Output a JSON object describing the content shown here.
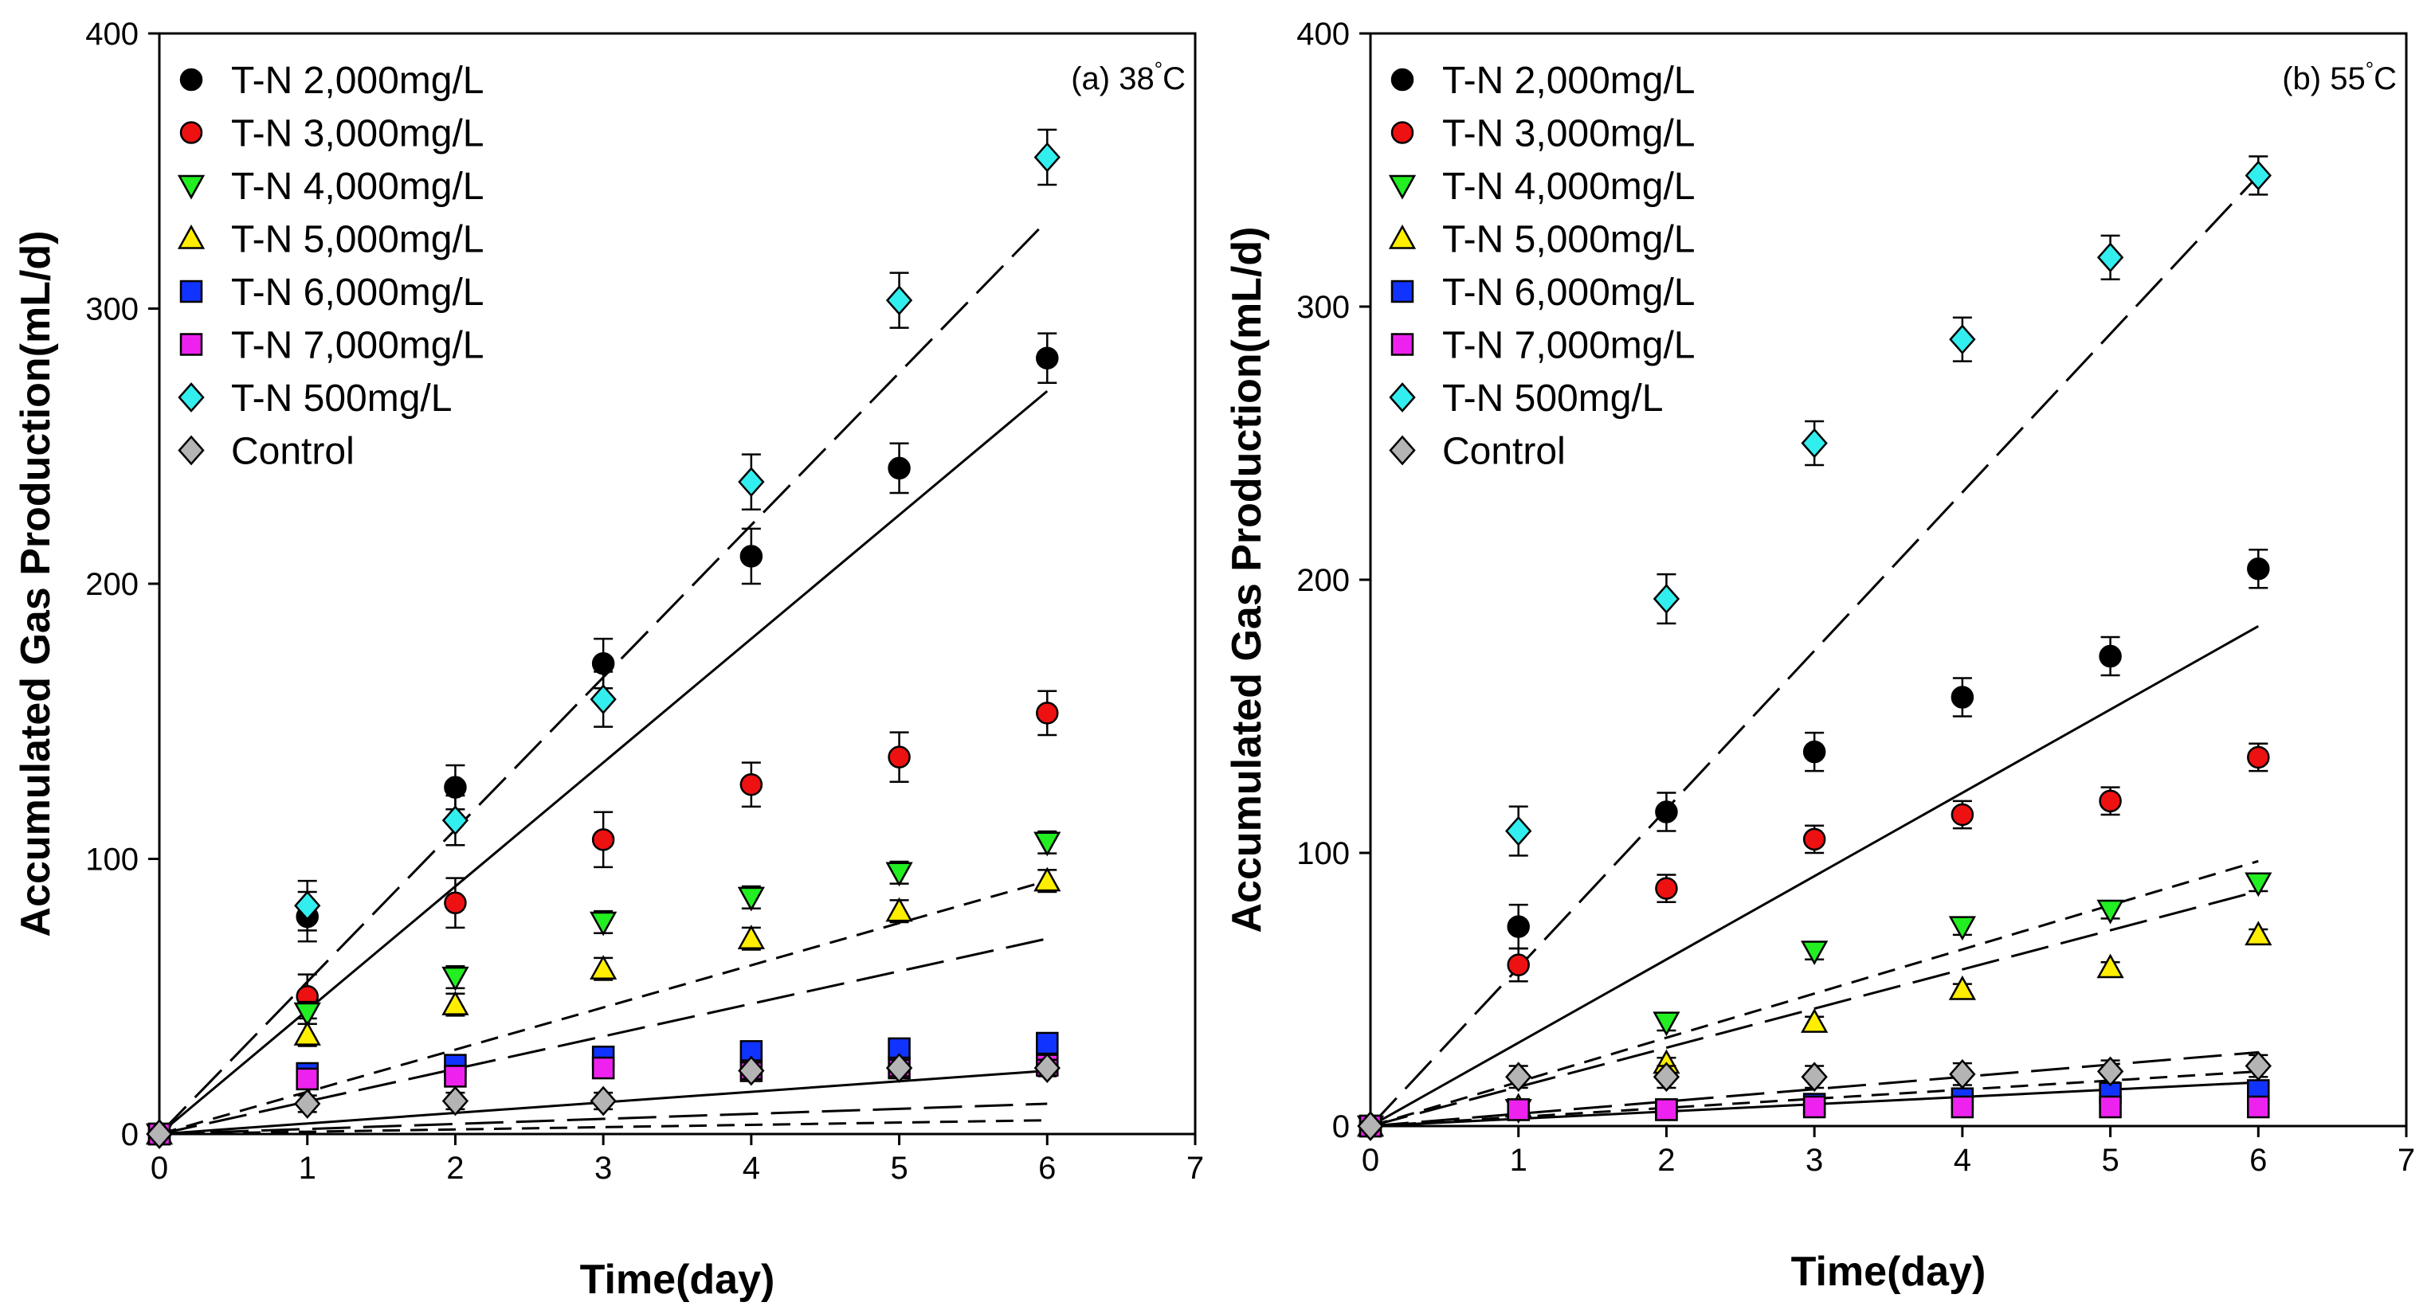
{
  "chart_data": [
    {
      "type": "scatter",
      "panel": "(a)",
      "temperature_label": "38",
      "temperature_unit": "°C",
      "xlabel": "Time(day)",
      "ylabel": "Accumulated Gas Production(mL/d)",
      "xlim": [
        0,
        7
      ],
      "ylim": [
        0,
        400
      ],
      "xticks": [
        "0",
        "1",
        "2",
        "3",
        "4",
        "5",
        "6",
        "7"
      ],
      "yticks": [
        "0",
        "100",
        "200",
        "300",
        "400"
      ],
      "x": [
        0,
        1,
        2,
        3,
        4,
        5,
        6
      ],
      "legend_position": "top-left",
      "series": [
        {
          "name": "T-N 2,000mg/L",
          "marker": "circle",
          "color": "#000000",
          "values": [
            0,
            79,
            126,
            171,
            210,
            242,
            282
          ],
          "errors": [
            0,
            9,
            8,
            9,
            10,
            9,
            9
          ],
          "fit_end": 270,
          "fit_style": "solid"
        },
        {
          "name": "T-N 3,000mg/L",
          "marker": "circle",
          "color": "#ee1111",
          "values": [
            0,
            50,
            84,
            107,
            127,
            137,
            153
          ],
          "errors": [
            0,
            8,
            9,
            10,
            8,
            9,
            8
          ],
          "fit_end": 92,
          "fit_style": "short-dash"
        },
        {
          "name": "T-N 4,000mg/L",
          "marker": "triangle-down",
          "color": "#22ee22",
          "values": [
            0,
            44,
            57,
            77,
            86,
            95,
            106
          ],
          "errors": [
            0,
            4,
            4,
            4,
            4,
            4,
            4
          ],
          "fit_end": 71,
          "fit_style": "long-dash"
        },
        {
          "name": "T-N 5,000mg/L",
          "marker": "triangle-up",
          "color": "#ffee00",
          "values": [
            0,
            36,
            47,
            60,
            71,
            81,
            92
          ],
          "errors": [
            0,
            4,
            4,
            4,
            4,
            4,
            4
          ],
          "fit_end": 0,
          "fit_style": "none"
        },
        {
          "name": "T-N 6,000mg/L",
          "marker": "square",
          "color": "#1133ff",
          "values": [
            0,
            22,
            25,
            28,
            30,
            31,
            33
          ],
          "errors": [
            0,
            3,
            3,
            3,
            3,
            3,
            3
          ],
          "fit_end": 11,
          "fit_style": "long-dash"
        },
        {
          "name": "T-N 7,000mg/L",
          "marker": "square",
          "color": "#ee22ee",
          "values": [
            0,
            20,
            21,
            24,
            23,
            24,
            25
          ],
          "errors": [
            0,
            3,
            3,
            3,
            3,
            3,
            3
          ],
          "fit_end": 5,
          "fit_style": "short-dash"
        },
        {
          "name": "T-N 500mg/L",
          "marker": "diamond",
          "color": "#33eeee",
          "values": [
            0,
            83,
            114,
            158,
            237,
            303,
            355
          ],
          "errors": [
            0,
            9,
            9,
            10,
            10,
            10,
            10
          ],
          "fit_end": 332,
          "fit_style": "long-dash"
        },
        {
          "name": "Control",
          "marker": "diamond",
          "color": "#b4b4b4",
          "values": [
            0,
            11,
            12,
            12,
            23,
            24,
            24
          ],
          "errors": [
            0,
            3,
            3,
            3,
            3,
            3,
            3
          ],
          "fit_end": 23,
          "fit_style": "solid"
        }
      ]
    },
    {
      "type": "scatter",
      "panel": "(b)",
      "temperature_label": "55",
      "temperature_unit": "°C",
      "xlabel": "Time(day)",
      "ylabel": "Accumulated Gas Production(mL/d)",
      "xlim": [
        0,
        7
      ],
      "ylim": [
        0,
        400
      ],
      "xticks": [
        "0",
        "1",
        "2",
        "3",
        "4",
        "5",
        "6",
        "7"
      ],
      "yticks": [
        "0",
        "100",
        "200",
        "300",
        "400"
      ],
      "x": [
        0,
        1,
        2,
        3,
        4,
        5,
        6
      ],
      "legend_position": "top-left",
      "series": [
        {
          "name": "T-N 2,000mg/L",
          "marker": "circle",
          "color": "#000000",
          "values": [
            0,
            73,
            115,
            137,
            157,
            172,
            204
          ],
          "errors": [
            0,
            8,
            7,
            7,
            7,
            7,
            7
          ],
          "fit_end": 183,
          "fit_style": "solid"
        },
        {
          "name": "T-N 3,000mg/L",
          "marker": "circle",
          "color": "#ee1111",
          "values": [
            0,
            59,
            87,
            105,
            114,
            119,
            135
          ],
          "errors": [
            0,
            6,
            5,
            5,
            5,
            5,
            5
          ],
          "fit_end": 97,
          "fit_style": "short-dash"
        },
        {
          "name": "T-N 4,000mg/L",
          "marker": "triangle-down",
          "color": "#22ee22",
          "values": [
            0,
            6,
            38,
            64,
            73,
            79,
            89
          ],
          "errors": [
            0,
            2,
            3,
            3,
            3,
            3,
            3
          ],
          "fit_end": 86,
          "fit_style": "long-dash"
        },
        {
          "name": "T-N 5,000mg/L",
          "marker": "triangle-up",
          "color": "#ffee00",
          "values": [
            0,
            7,
            23,
            38,
            50,
            58,
            70
          ],
          "errors": [
            0,
            2,
            2,
            2,
            2,
            2,
            2
          ],
          "fit_end": 0,
          "fit_style": "none"
        },
        {
          "name": "T-N 6,000mg/L",
          "marker": "square",
          "color": "#1133ff",
          "values": [
            0,
            6,
            6,
            8,
            10,
            12,
            13
          ],
          "errors": [
            0,
            1,
            1,
            1,
            1,
            1,
            1
          ],
          "fit_end": 16,
          "fit_style": "solid"
        },
        {
          "name": "T-N 7,000mg/L",
          "marker": "square",
          "color": "#ee22ee",
          "values": [
            0,
            6,
            6,
            7,
            7,
            7,
            7
          ],
          "errors": [
            0,
            1,
            1,
            1,
            1,
            1,
            1
          ],
          "fit_end": 20,
          "fit_style": "short-dash"
        },
        {
          "name": "T-N 500mg/L",
          "marker": "diamond",
          "color": "#33eeee",
          "values": [
            0,
            108,
            193,
            250,
            288,
            318,
            348
          ],
          "errors": [
            0,
            9,
            9,
            8,
            8,
            8,
            7
          ],
          "fit_end": 348,
          "fit_style": "long-dash"
        },
        {
          "name": "Control",
          "marker": "diamond",
          "color": "#b4b4b4",
          "values": [
            0,
            18,
            18,
            18,
            19,
            20,
            22
          ],
          "errors": [
            0,
            4,
            4,
            4,
            4,
            4,
            4
          ],
          "fit_end": 27,
          "fit_style": "long-dash"
        }
      ]
    }
  ]
}
